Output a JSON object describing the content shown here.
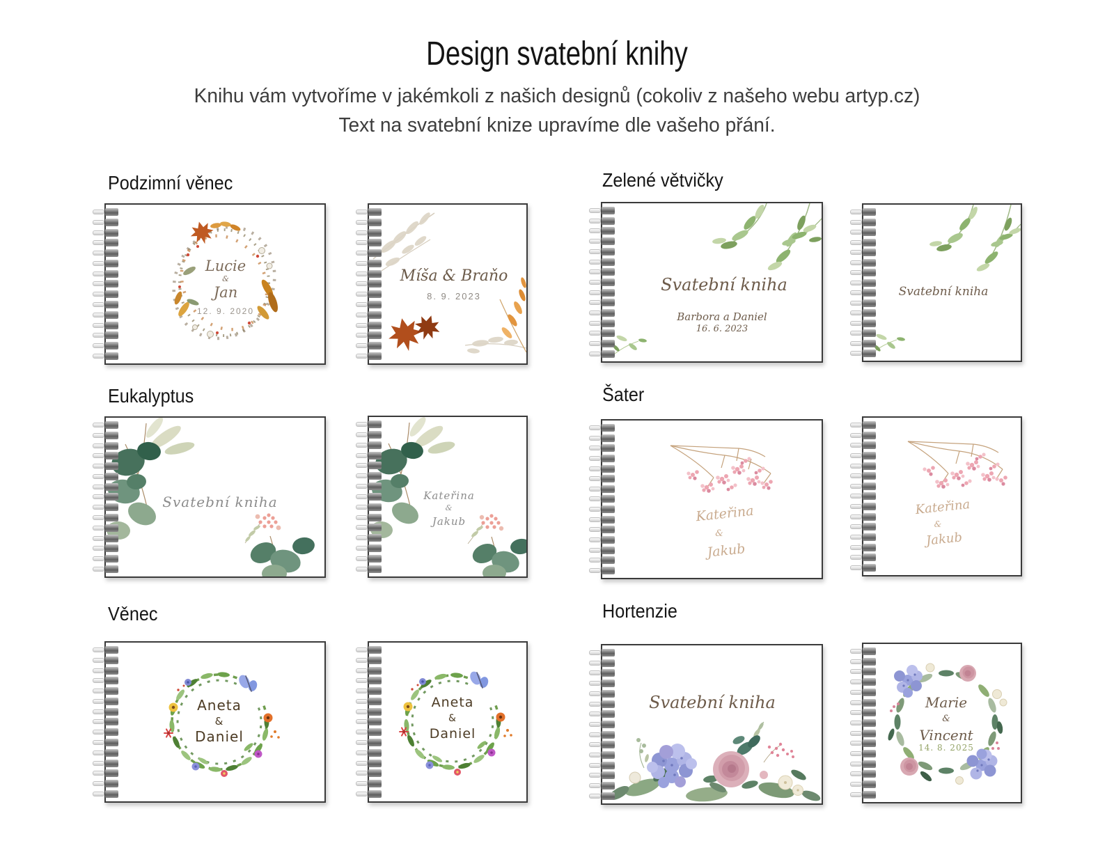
{
  "header": {
    "title": "Design svatební knihy",
    "subtitle1": "Knihu vám vytvoříme v jakémkoli z našich designů (cokoliv z našeho webu artyp.cz)",
    "subtitle2": "Text na svatební knize upravíme dle vašeho přání."
  },
  "colors": {
    "script_brown": "#6d5b4a",
    "script_tan": "#c9ab8f",
    "serif_gray": "#8c8c8c",
    "hand_brown": "#4c3b24",
    "date_gray": "#9a948c",
    "date_green": "#93a265"
  },
  "sections": [
    {
      "label": "Podzimní věnec",
      "books": [
        {
          "style": "landscape",
          "design": "autumn-wreath",
          "lines": {
            "name1": "Lucie",
            "amp": "&",
            "name2": "Jan",
            "date": "12. 9. 2020"
          }
        },
        {
          "style": "square",
          "design": "autumn-corner",
          "lines": {
            "title": "Míša & Braňo",
            "date": "8. 9. 2023"
          }
        }
      ]
    },
    {
      "label": "Zelené větvičky",
      "books": [
        {
          "style": "landscape",
          "design": "green-twigs",
          "lines": {
            "title": "Svatební kniha",
            "names": "Barbora a Daniel",
            "date": "16. 6. 2023"
          }
        },
        {
          "style": "square",
          "design": "green-twigs",
          "lines": {
            "title": "Svatební kniha"
          }
        }
      ]
    },
    {
      "label": "Eukalyptus",
      "books": [
        {
          "style": "landscape",
          "design": "eucalyptus",
          "lines": {
            "title": "Svatební kniha"
          }
        },
        {
          "style": "square",
          "design": "eucalyptus",
          "lines": {
            "name1": "Kateřina",
            "amp": "&",
            "name2": "Jakub"
          }
        }
      ]
    },
    {
      "label": "Šater",
      "books": [
        {
          "style": "landscape",
          "design": "gypsophila",
          "lines": {
            "name1": "Kateřina",
            "amp": "&",
            "name2": "Jakub"
          }
        },
        {
          "style": "square",
          "design": "gypsophila",
          "lines": {
            "name1": "Kateřina",
            "amp": "&",
            "name2": "Jakub"
          }
        }
      ]
    },
    {
      "label": "Věnec",
      "books": [
        {
          "style": "landscape",
          "design": "flower-wreath",
          "lines": {
            "name1": "Aneta",
            "amp": "&",
            "name2": "Daniel"
          }
        },
        {
          "style": "square",
          "design": "flower-wreath",
          "lines": {
            "name1": "Aneta",
            "amp": "&",
            "name2": "Daniel"
          }
        }
      ]
    },
    {
      "label": "Hortenzie",
      "books": [
        {
          "style": "landscape",
          "design": "hydrangea-bouquet",
          "lines": {
            "title": "Svatební kniha"
          }
        },
        {
          "style": "square",
          "design": "hydrangea-wreath",
          "lines": {
            "name1": "Marie",
            "amp": "&",
            "name2": "Vincent",
            "date": "14. 8. 2025"
          }
        }
      ]
    }
  ]
}
